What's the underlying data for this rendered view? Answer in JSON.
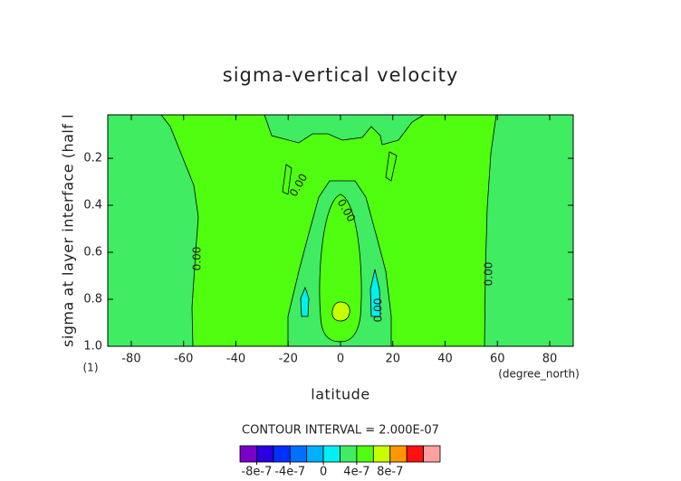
{
  "chart_data": {
    "type": "contour",
    "title": "sigma-vertical velocity",
    "xlabel": "latitude",
    "xunit": "(degree_north)",
    "ylabel": "sigma at layer interface (half l",
    "yunit": "(1)",
    "xlim": [
      -89,
      89
    ],
    "xticks": [
      -80,
      -60,
      -40,
      -20,
      0,
      20,
      40,
      60,
      80
    ],
    "ylim": [
      1,
      0.015
    ],
    "yticks": [
      {
        "value": 1,
        "label": "1.0"
      },
      0.8,
      0.6,
      0.4,
      0.2
    ],
    "contour_labels": [
      "0.00",
      "0.00",
      "0.00",
      "0.00",
      "0.00"
    ],
    "contour_interval_label": "CONTOUR INTERVAL = 2.000E-07",
    "colorbar": {
      "lim": [
        -1e-06,
        1.4e-06
      ],
      "colors": [
        "#7a00c8",
        "#2a00e0",
        "#0030ff",
        "#0070ff",
        "#00b0ff",
        "#00f0f0",
        "#40ec62",
        "#50ff10",
        "#c8ff00",
        "#ff9800",
        "#ff1010",
        "#ffa0a0"
      ],
      "ticks": [
        -8e-07,
        -4e-07,
        0,
        4e-07,
        8e-07
      ]
    }
  }
}
